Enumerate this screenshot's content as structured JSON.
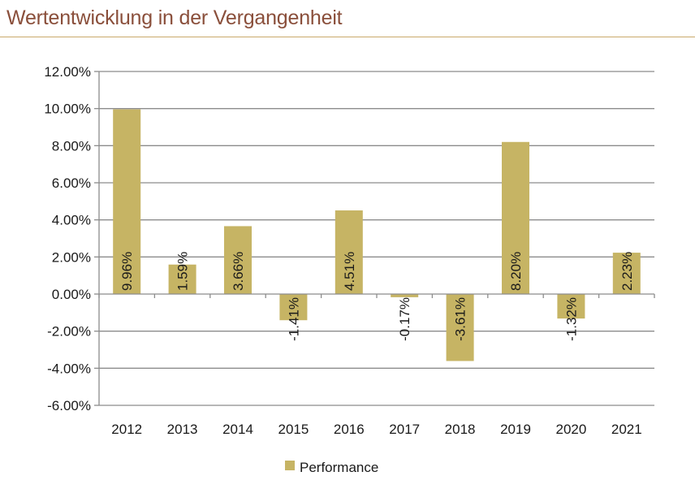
{
  "header": {
    "title": "Wertentwicklung in der Vergangenheit"
  },
  "colors": {
    "bar": "#c6b464",
    "title": "#8a4f3b",
    "grid": "#8c8c8c",
    "rule": "#c9a96b"
  },
  "chart_data": {
    "type": "bar",
    "categories": [
      "2012",
      "2013",
      "2014",
      "2015",
      "2016",
      "2017",
      "2018",
      "2019",
      "2020",
      "2021"
    ],
    "series": [
      {
        "name": "Performance",
        "values": [
          9.96,
          1.59,
          3.66,
          -1.41,
          4.51,
          -0.17,
          -3.61,
          8.2,
          -1.32,
          2.23
        ]
      }
    ],
    "data_labels": [
      "9.96%",
      "1.59%",
      "3.66%",
      "-1.41%",
      "4.51%",
      "-0.17%",
      "-3.61%",
      "8.20%",
      "-1.32%",
      "2.23%"
    ],
    "y_ticks": [
      12,
      10,
      8,
      6,
      4,
      2,
      0,
      -2,
      -4,
      -6
    ],
    "y_tick_labels": [
      "12.00%",
      "10.00%",
      "8.00%",
      "6.00%",
      "4.00%",
      "2.00%",
      "0.00%",
      "-2.00%",
      "-4.00%",
      "-6.00%"
    ],
    "ylim": [
      -6,
      12
    ],
    "grid": true,
    "legend": "bottom",
    "title": "",
    "xlabel": "",
    "ylabel": ""
  }
}
